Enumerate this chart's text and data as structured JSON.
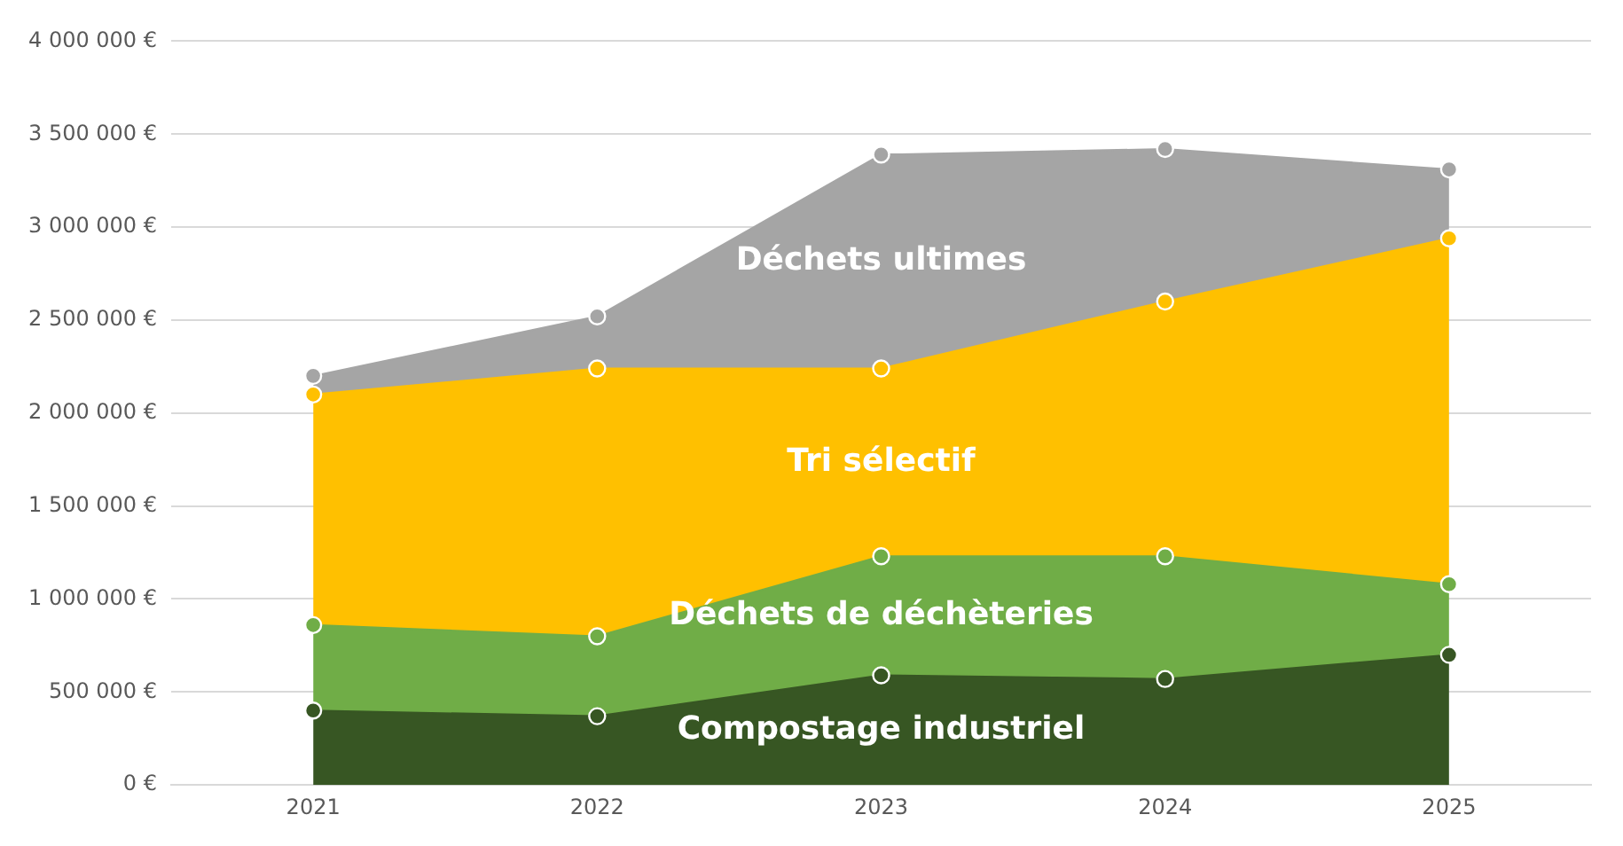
{
  "chart_data": {
    "type": "area",
    "stacked": true,
    "categories": [
      "2021",
      "2022",
      "2023",
      "2024",
      "2025"
    ],
    "series": [
      {
        "name": "Compostage industriel",
        "color": "#375623",
        "values": [
          400000,
          370000,
          590000,
          570000,
          700000
        ]
      },
      {
        "name": "Déchets de déchèteries",
        "color": "#70ad47",
        "values": [
          460000,
          430000,
          640000,
          660000,
          380000
        ]
      },
      {
        "name": "Tri sélectif",
        "color": "#ffc000",
        "values": [
          1240000,
          1440000,
          1010000,
          1370000,
          1860000
        ]
      },
      {
        "name": "Déchets ultimes",
        "color": "#a5a5a5",
        "values": [
          100000,
          280000,
          1150000,
          820000,
          370000
        ]
      }
    ],
    "ylim": [
      0,
      4000000
    ],
    "yticks": [
      {
        "value": 0,
        "label": "0 €"
      },
      {
        "value": 500000,
        "label": "500 000 €"
      },
      {
        "value": 1000000,
        "label": "1 000 000 €"
      },
      {
        "value": 1500000,
        "label": "1 500 000 €"
      },
      {
        "value": 2000000,
        "label": "2 000 000 €"
      },
      {
        "value": 2500000,
        "label": "2 500 000 €"
      },
      {
        "value": 3000000,
        "label": "3 000 000 €"
      },
      {
        "value": 3500000,
        "label": "3 500 000 €"
      },
      {
        "value": 4000000,
        "label": "4 000 000 €"
      }
    ],
    "grid": "y",
    "legend": false,
    "marker": "circle"
  }
}
